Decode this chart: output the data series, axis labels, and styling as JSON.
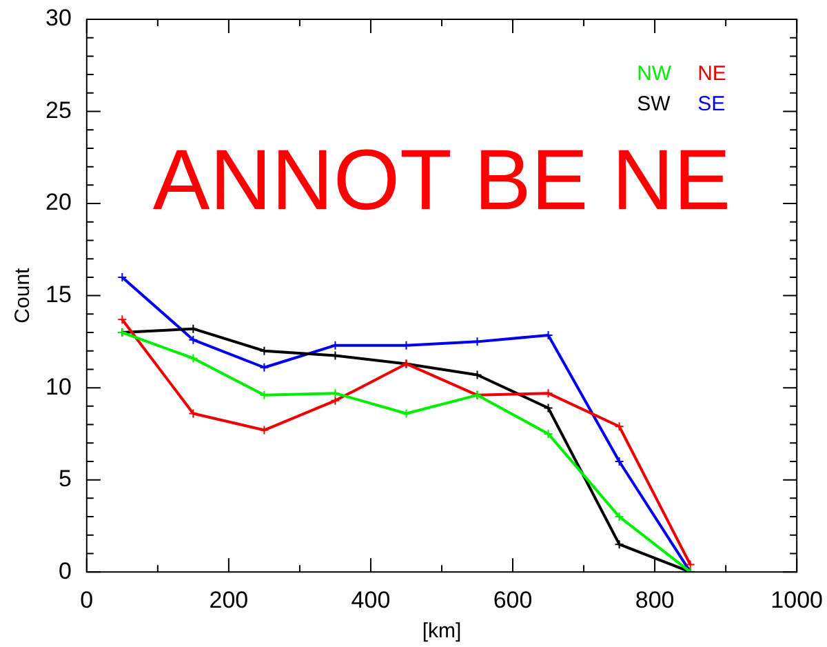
{
  "chart_data": {
    "type": "line",
    "xlabel": "[km]",
    "ylabel": "Count",
    "annotations": [
      "ANNOT BE NE"
    ],
    "x": [
      50,
      150,
      250,
      350,
      450,
      550,
      650,
      750,
      850
    ],
    "series": [
      {
        "name": "NW",
        "color": "#00ee00",
        "values": [
          13,
          11.6,
          9.6,
          9.7,
          8.6,
          9.6,
          7.5,
          3,
          0
        ]
      },
      {
        "name": "NE",
        "color": "#ee0000",
        "values": [
          13.7,
          8.6,
          7.7,
          9.3,
          11.3,
          9.6,
          9.7,
          7.9,
          0.4
        ]
      },
      {
        "name": "SW",
        "color": "#000000",
        "values": [
          13,
          13.2,
          12,
          11.75,
          11.3,
          10.7,
          8.9,
          1.5,
          0
        ]
      },
      {
        "name": "SE",
        "color": "#0000ee",
        "values": [
          16,
          12.6,
          11.1,
          12.3,
          12.3,
          12.5,
          12.85,
          6,
          0
        ]
      }
    ],
    "xlim": [
      0,
      1000
    ],
    "xticks": [
      0,
      {
        "value": 100,
        "label": null
      },
      200,
      {
        "value": 300,
        "label": null
      },
      400,
      {
        "value": 500,
        "label": null
      },
      600,
      {
        "value": 700,
        "label": null
      },
      800,
      {
        "value": 900,
        "label": null
      },
      1000
    ],
    "ylim": [
      0,
      30
    ],
    "yticks": [
      0,
      {
        "value": 1,
        "label": null
      },
      {
        "value": 2,
        "label": null
      },
      {
        "value": 3,
        "label": null
      },
      {
        "value": 4,
        "label": null
      },
      5,
      {
        "value": 6,
        "label": null
      },
      {
        "value": 7,
        "label": null
      },
      {
        "value": 8,
        "label": null
      },
      {
        "value": 9,
        "label": null
      },
      10,
      {
        "value": 11,
        "label": null
      },
      {
        "value": 12,
        "label": null
      },
      {
        "value": 13,
        "label": null
      },
      {
        "value": 14,
        "label": null
      },
      15,
      {
        "value": 16,
        "label": null
      },
      {
        "value": 17,
        "label": null
      },
      {
        "value": 18,
        "label": null
      },
      {
        "value": 19,
        "label": null
      },
      20,
      {
        "value": 21,
        "label": null
      },
      {
        "value": 22,
        "label": null
      },
      {
        "value": 23,
        "label": null
      },
      {
        "value": 24,
        "label": null
      },
      25,
      {
        "value": 26,
        "label": null
      },
      {
        "value": 27,
        "label": null
      },
      {
        "value": 28,
        "label": null
      },
      {
        "value": 29,
        "label": null
      },
      30
    ],
    "grid": false,
    "legend": "top right",
    "marker": "cross",
    "line_style": "solid"
  }
}
